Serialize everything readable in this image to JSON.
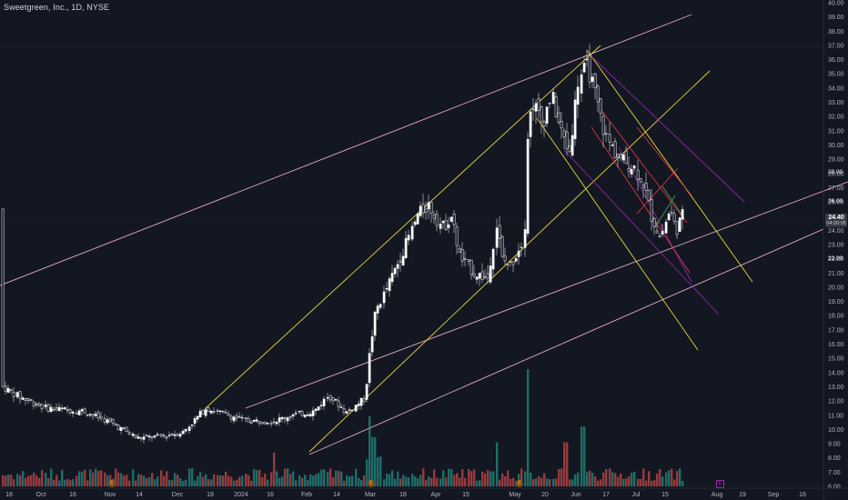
{
  "header": {
    "symbol_title": "Sweetgreen, Inc., 1D, NYSE"
  },
  "price_axis": {
    "labels": [
      "40.00",
      "39.00",
      "38.00",
      "37.00",
      "36.00",
      "35.00",
      "34.00",
      "33.00",
      "32.00",
      "31.00",
      "30.00",
      "29.00",
      "28.00",
      "27.00",
      "26.00",
      "25.00",
      "24.00",
      "23.00",
      "22.00",
      "21.00",
      "20.00",
      "19.00",
      "18.00",
      "17.00",
      "16.00",
      "15.00",
      "14.00",
      "13.00",
      "12.00",
      "11.00",
      "10.00",
      "9.00",
      "8.00",
      "7.00",
      "6.00"
    ],
    "current_price": "24.40",
    "countdown": "04:20:05",
    "marker_28": "28.00",
    "marker_26": "26.00",
    "marker_22": "22.00"
  },
  "time_axis": {
    "labels": [
      "18",
      "Oct",
      "16",
      "Nov",
      "14",
      "Dec",
      "18",
      "2024",
      "16",
      "Feb",
      "14",
      "Mar",
      "18",
      "Apr",
      "15",
      "May",
      "20",
      "Jun",
      "17",
      "Jul",
      "15",
      "Aug",
      "19",
      "Sep",
      "16"
    ]
  },
  "event_markers": {
    "earnings": "E",
    "upcoming": "E"
  },
  "colors": {
    "background": "#131722",
    "candle_up": "#ffffff",
    "candle_down": "#ffffff",
    "volume_up": "#26a69a",
    "volume_down": "#ef5350",
    "trend_pink": "#f8bbd0",
    "trend_yellow": "#ffeb3b",
    "trend_purple": "#9c27b0",
    "trend_red": "#f23645",
    "trend_green": "#4caf50"
  }
}
